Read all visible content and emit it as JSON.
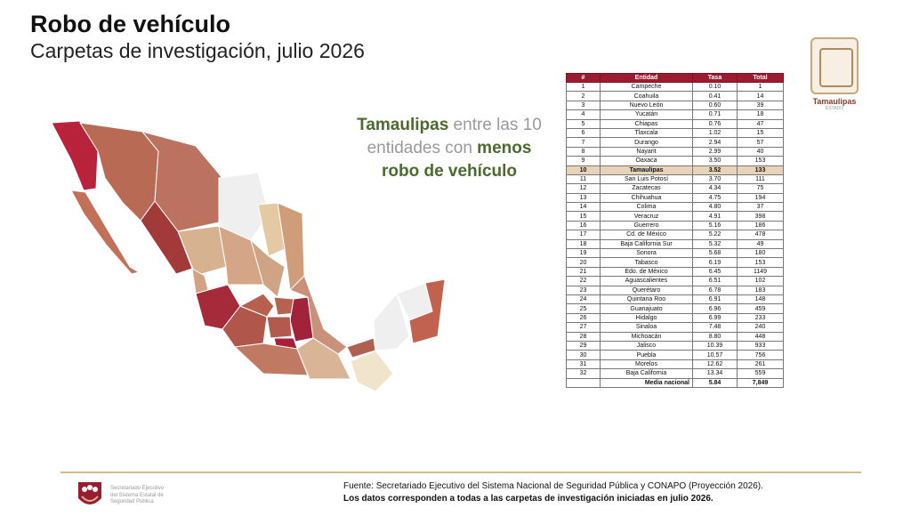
{
  "header": {
    "title": "Robo de vehículo",
    "subtitle": "Carpetas de investigación, julio 2026"
  },
  "headline": {
    "part1": "Tamaulipas",
    "part2": " entre las 10 entidades con ",
    "part3": "menos",
    "part4": "robo de vehículo"
  },
  "table": {
    "headers": [
      "#",
      "Entidad",
      "Tasa",
      "Total"
    ],
    "highlight_rank": "10",
    "rows": [
      [
        "1",
        "Campeche",
        "0.10",
        "1"
      ],
      [
        "2",
        "Coahuila",
        "0.41",
        "14"
      ],
      [
        "3",
        "Nuevo León",
        "0.60",
        "39"
      ],
      [
        "4",
        "Yucatán",
        "0.71",
        "18"
      ],
      [
        "5",
        "Chiapas",
        "0.76",
        "47"
      ],
      [
        "6",
        "Tlaxcala",
        "1.02",
        "15"
      ],
      [
        "7",
        "Durango",
        "2.94",
        "57"
      ],
      [
        "8",
        "Nayarit",
        "2.99",
        "40"
      ],
      [
        "9",
        "Oaxaca",
        "3.50",
        "153"
      ],
      [
        "10",
        "Tamaulipas",
        "3.52",
        "133"
      ],
      [
        "11",
        "San Luis Potosí",
        "3.70",
        "111"
      ],
      [
        "12",
        "Zacatecas",
        "4.34",
        "75"
      ],
      [
        "13",
        "Chihuahua",
        "4.75",
        "194"
      ],
      [
        "14",
        "Colima",
        "4.80",
        "37"
      ],
      [
        "15",
        "Veracruz",
        "4.91",
        "398"
      ],
      [
        "16",
        "Guerrero",
        "5.16",
        "186"
      ],
      [
        "17",
        "Cd. de México",
        "5.22",
        "478"
      ],
      [
        "18",
        "Baja California Sur",
        "5.32",
        "49"
      ],
      [
        "19",
        "Sonora",
        "5.68",
        "180"
      ],
      [
        "20",
        "Tabasco",
        "6.19",
        "153"
      ],
      [
        "21",
        "Edo. de México",
        "6.45",
        "1149"
      ],
      [
        "22",
        "Aguascalientes",
        "6.51",
        "102"
      ],
      [
        "23",
        "Querétaro",
        "6.78",
        "183"
      ],
      [
        "24",
        "Quintana Roo",
        "6.91",
        "148"
      ],
      [
        "25",
        "Guanajuato",
        "6.96",
        "459"
      ],
      [
        "26",
        "Hidalgo",
        "6.99",
        "233"
      ],
      [
        "27",
        "Sinaloa",
        "7.48",
        "240"
      ],
      [
        "28",
        "Michoacán",
        "8.80",
        "448"
      ],
      [
        "29",
        "Jalisco",
        "10.39",
        "933"
      ],
      [
        "30",
        "Puebla",
        "10.57",
        "756"
      ],
      [
        "31",
        "Morelos",
        "12.62",
        "261"
      ],
      [
        "32",
        "Baja California",
        "13.34",
        "559"
      ]
    ],
    "total": {
      "label": "Media nacional",
      "tasa": "5.84",
      "total": "7,849"
    }
  },
  "logo_tamaulipas": {
    "name": "Tamaulipas",
    "sub": "ESTADO"
  },
  "logo_ses": {
    "line1": "Secretariado Ejecutivo",
    "line2": "del Sistema Estatal de",
    "line3": "Seguridad Pública"
  },
  "footer": {
    "source": "Fuente: Secretariado Ejecutivo del Sistema Nacional de Seguridad Pública y CONAPO (Proyección 2026).",
    "note": "Los datos corresponden a todas a las carpetas de investigación iniciadas en julio 2026."
  },
  "colors": {
    "header_red": "#9b1b30",
    "highlight": "#e8d3b8",
    "green": "#4a6b2c",
    "footer_line": "#d9b990"
  }
}
